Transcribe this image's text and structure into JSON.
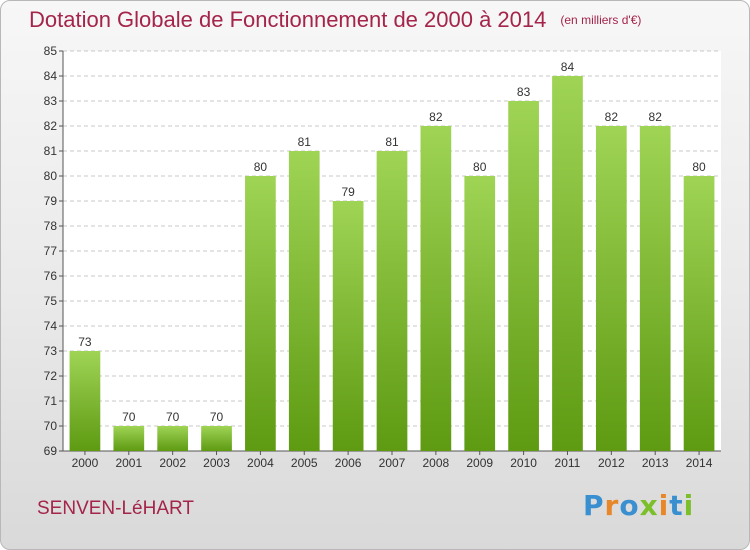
{
  "header": {
    "title": "Dotation Globale de Fonctionnement de 2000 à 2014",
    "unit": "(en milliers d'€)"
  },
  "footer": {
    "commune": "SENVEN-LéHART",
    "logo": [
      {
        "ch": "P",
        "color": "#3a8fd0"
      },
      {
        "ch": "r",
        "color": "#e8862a"
      },
      {
        "ch": "o",
        "color": "#3a8fd0"
      },
      {
        "ch": "x",
        "color": "#7bbf2a"
      },
      {
        "ch": "i",
        "color": "#e8862a"
      },
      {
        "ch": "t",
        "color": "#3a8fd0"
      },
      {
        "ch": "i",
        "color": "#7bbf2a"
      }
    ]
  },
  "chart_data": {
    "type": "bar",
    "categories": [
      "2000",
      "2001",
      "2002",
      "2003",
      "2004",
      "2005",
      "2006",
      "2007",
      "2008",
      "2009",
      "2010",
      "2011",
      "2012",
      "2013",
      "2014"
    ],
    "values": [
      73,
      70,
      70,
      70,
      80,
      81,
      79,
      81,
      82,
      80,
      83,
      84,
      82,
      82,
      80
    ],
    "ylim": [
      69,
      85
    ],
    "yticks": [
      69,
      70,
      71,
      72,
      73,
      74,
      75,
      76,
      77,
      78,
      79,
      80,
      81,
      82,
      83,
      84,
      85
    ],
    "grid": true,
    "bar_color_top": "#9fd455",
    "bar_color_bottom": "#5e9a12"
  }
}
